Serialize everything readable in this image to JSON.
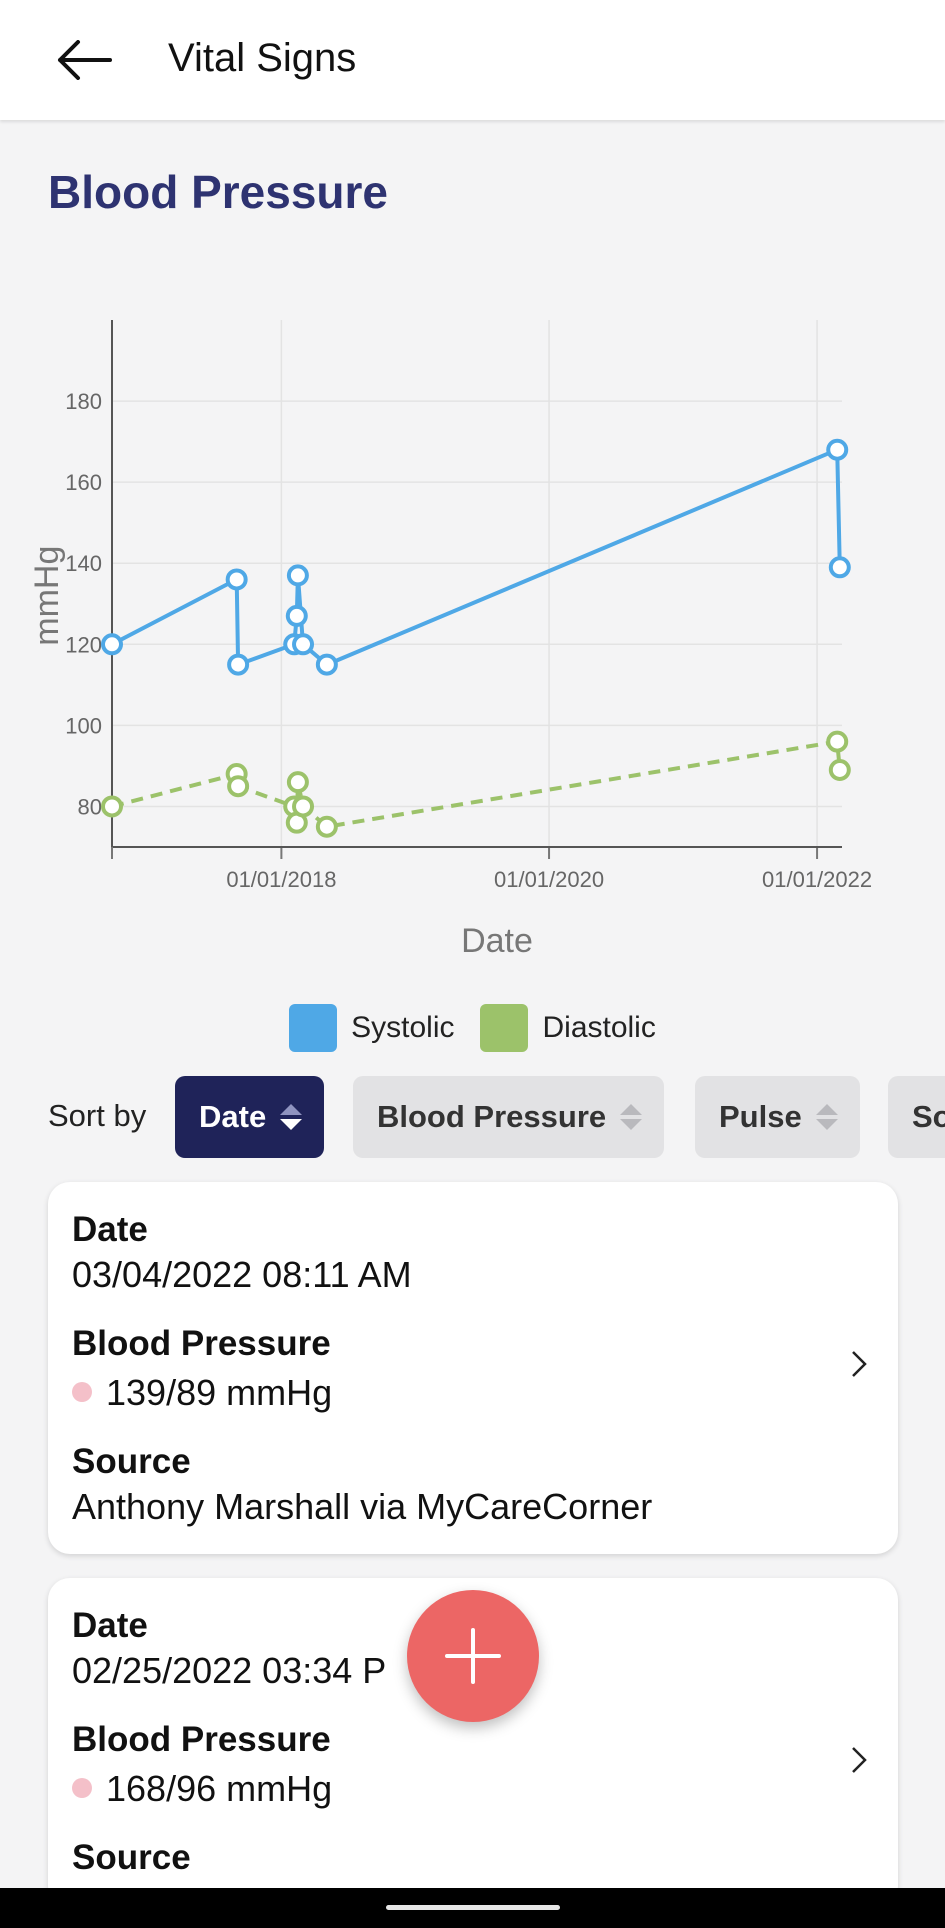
{
  "app_bar": {
    "title": "Vital Signs",
    "back_icon": "arrow-left-icon"
  },
  "section": {
    "title": "Blood Pressure"
  },
  "chart_data": {
    "type": "line",
    "xlabel": "Date",
    "ylabel": "mmHg",
    "x_ticks": [
      "01/01/2018",
      "01/01/2020",
      "01/01/2022"
    ],
    "y_ticks": [
      80,
      100,
      120,
      140,
      160,
      180
    ],
    "ylim": [
      70,
      200
    ],
    "xlim": [
      "2016-09-26",
      "2022-03-10"
    ],
    "grid": true,
    "legend_position": "bottom-center",
    "series": [
      {
        "name": "Systolic",
        "color": "#4fa8e6",
        "line_style": "solid",
        "points": [
          {
            "x": "2016-09-26",
            "y": 120
          },
          {
            "x": "2017-09-01",
            "y": 136
          },
          {
            "x": "2017-09-05",
            "y": 115
          },
          {
            "x": "2018-02-05",
            "y": 120
          },
          {
            "x": "2018-02-12",
            "y": 127
          },
          {
            "x": "2018-02-15",
            "y": 137
          },
          {
            "x": "2018-03-01",
            "y": 120
          },
          {
            "x": "2018-05-05",
            "y": 115
          },
          {
            "x": "2022-02-25",
            "y": 168
          },
          {
            "x": "2022-03-04",
            "y": 139
          }
        ]
      },
      {
        "name": "Diastolic",
        "color": "#9cc26a",
        "line_style": "dashed",
        "points": [
          {
            "x": "2016-09-26",
            "y": 80
          },
          {
            "x": "2017-09-01",
            "y": 88
          },
          {
            "x": "2017-09-05",
            "y": 85
          },
          {
            "x": "2018-02-05",
            "y": 80
          },
          {
            "x": "2018-02-12",
            "y": 76
          },
          {
            "x": "2018-02-15",
            "y": 86
          },
          {
            "x": "2018-03-01",
            "y": 80
          },
          {
            "x": "2018-05-05",
            "y": 75
          },
          {
            "x": "2022-02-25",
            "y": 96
          },
          {
            "x": "2022-03-04",
            "y": 89
          }
        ]
      }
    ]
  },
  "sort": {
    "label": "Sort by",
    "options": [
      {
        "label": "Date",
        "active": true
      },
      {
        "label": "Blood Pressure",
        "active": false
      },
      {
        "label": "Pulse",
        "active": false
      },
      {
        "label": "So",
        "active": false
      }
    ]
  },
  "records": [
    {
      "date_label": "Date",
      "date": "03/04/2022 08:11 AM",
      "bp_label": "Blood Pressure",
      "bp": "139/89 mmHg",
      "source_label": "Source",
      "source": "Anthony Marshall via MyCareCorner"
    },
    {
      "date_label": "Date",
      "date": "02/25/2022 03:34 P",
      "bp_label": "Blood Pressure",
      "bp": "168/96 mmHg",
      "source_label": "Source"
    }
  ],
  "fab": {
    "icon": "plus-icon"
  }
}
